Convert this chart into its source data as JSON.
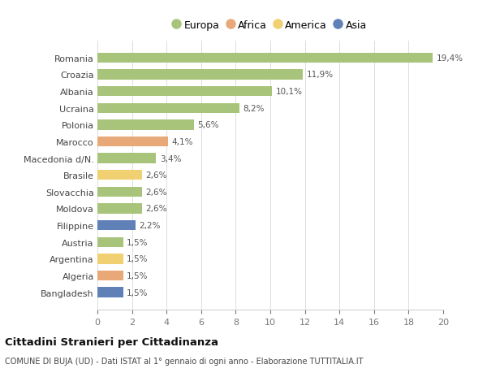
{
  "countries": [
    "Bangladesh",
    "Algeria",
    "Argentina",
    "Austria",
    "Filippine",
    "Moldova",
    "Slovacchia",
    "Brasile",
    "Macedonia d/N.",
    "Marocco",
    "Polonia",
    "Ucraina",
    "Albania",
    "Croazia",
    "Romania"
  ],
  "values": [
    1.5,
    1.5,
    1.5,
    1.5,
    2.2,
    2.6,
    2.6,
    2.6,
    3.4,
    4.1,
    5.6,
    8.2,
    10.1,
    11.9,
    19.4
  ],
  "labels": [
    "1,5%",
    "1,5%",
    "1,5%",
    "1,5%",
    "2,2%",
    "2,6%",
    "2,6%",
    "2,6%",
    "3,4%",
    "4,1%",
    "5,6%",
    "8,2%",
    "10,1%",
    "11,9%",
    "19,4%"
  ],
  "continents": [
    "Asia",
    "Africa",
    "America",
    "Europa",
    "Asia",
    "Europa",
    "Europa",
    "America",
    "Europa",
    "Africa",
    "Europa",
    "Europa",
    "Europa",
    "Europa",
    "Europa"
  ],
  "colors": {
    "Europa": "#a8c47a",
    "Africa": "#e8a878",
    "America": "#f0d070",
    "Asia": "#6080b8"
  },
  "legend_order": [
    "Europa",
    "Africa",
    "America",
    "Asia"
  ],
  "title": "Cittadini Stranieri per Cittadinanza",
  "subtitle": "COMUNE DI BUJA (UD) - Dati ISTAT al 1° gennaio di ogni anno - Elaborazione TUTTITALIA.IT",
  "xlim": [
    0,
    20
  ],
  "xticks": [
    0,
    2,
    4,
    6,
    8,
    10,
    12,
    14,
    16,
    18,
    20
  ],
  "background_color": "#ffffff",
  "bar_height": 0.6
}
